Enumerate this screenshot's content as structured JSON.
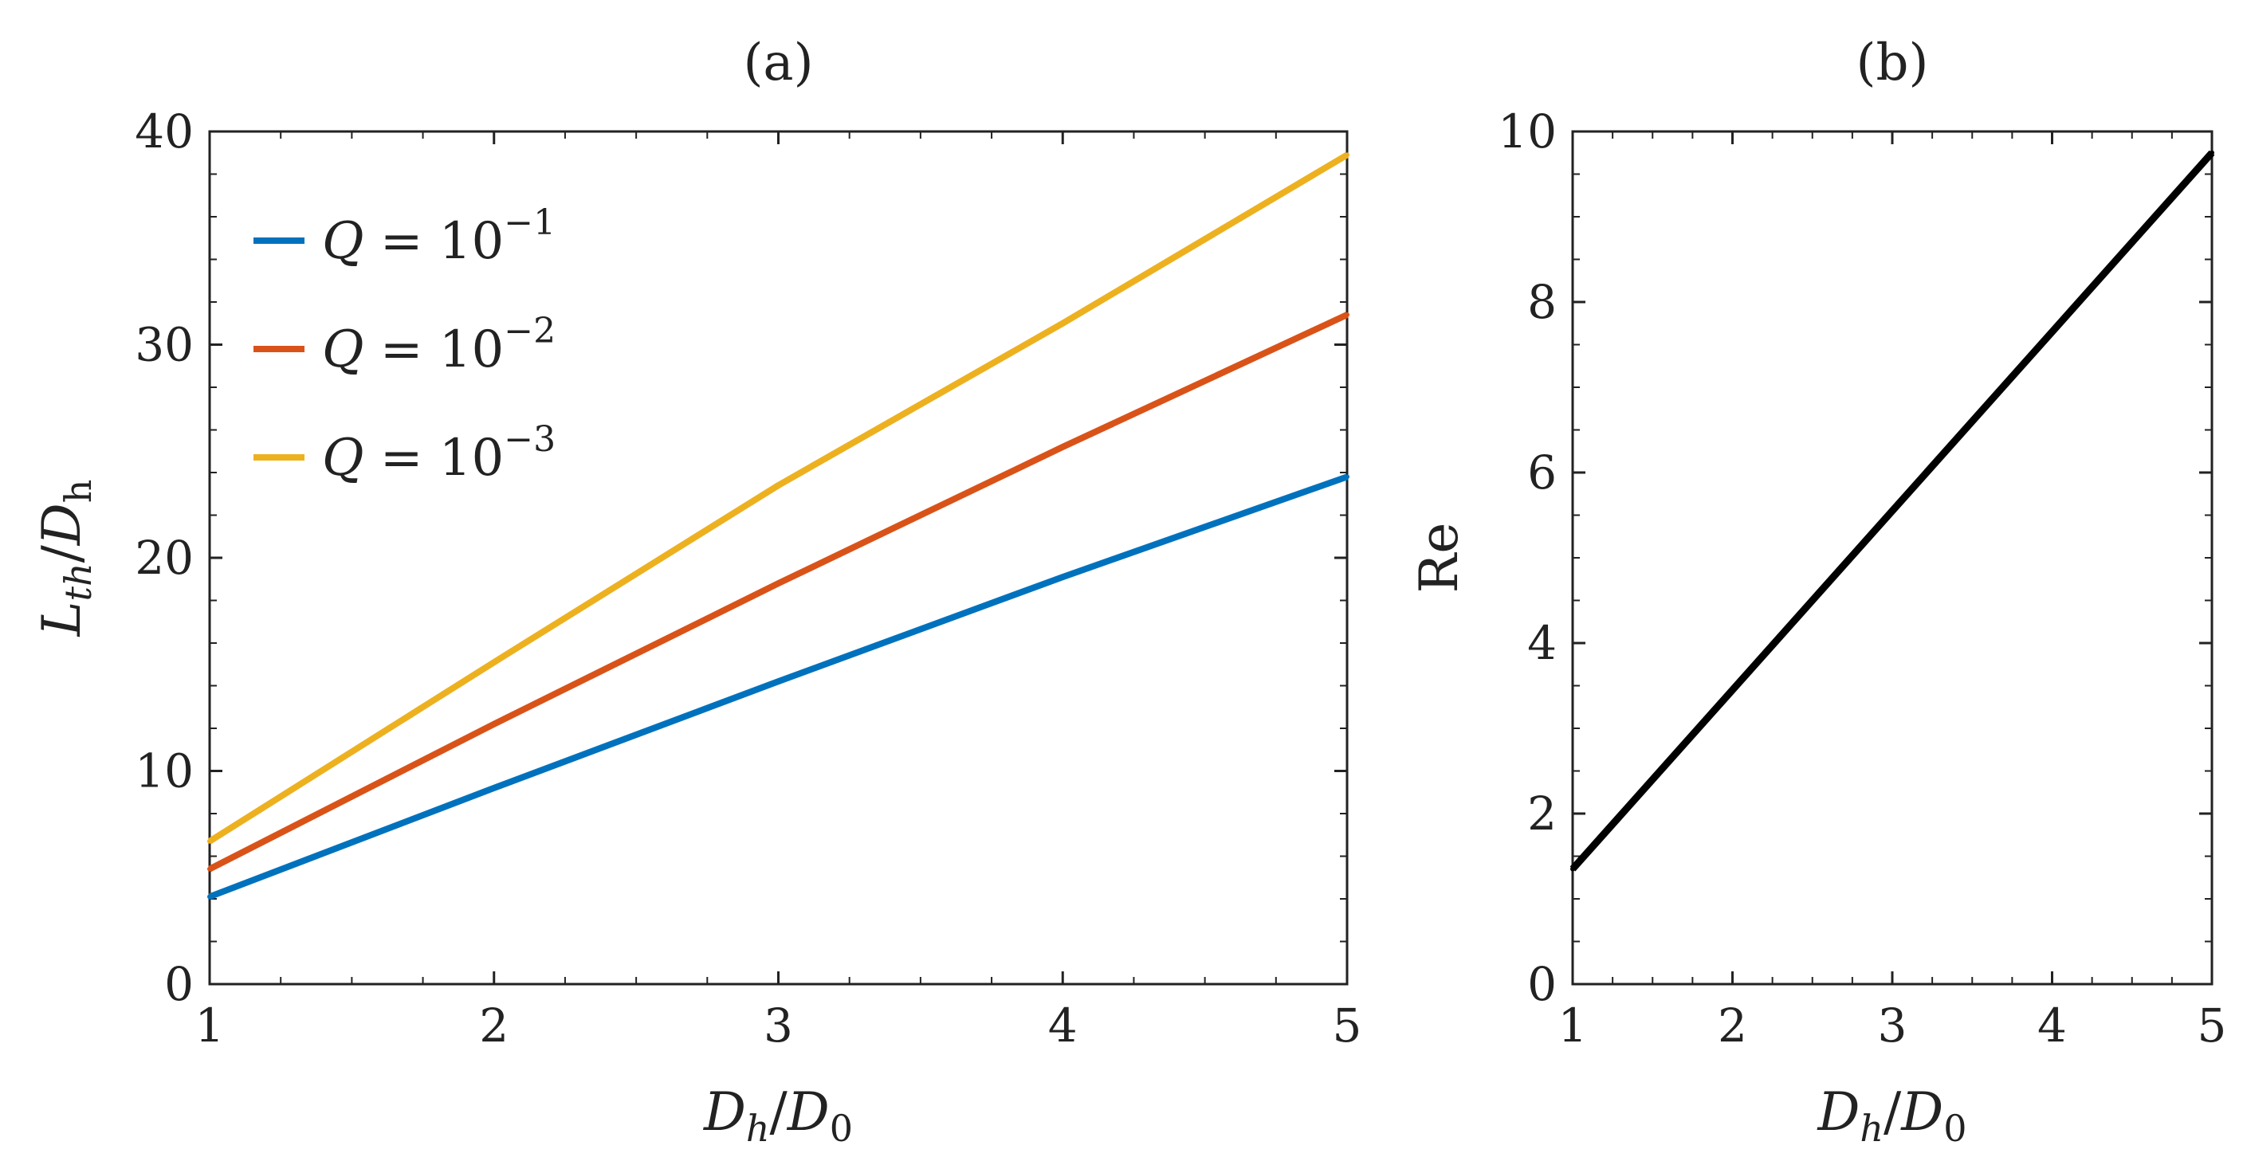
{
  "chart_data": [
    {
      "type": "line",
      "title": "(a)",
      "xlabel": {
        "main": "D",
        "sub1": "h",
        "slash": "/",
        "main2": "D",
        "sub2": "0"
      },
      "ylabel": {
        "main": "L",
        "sub1": "th",
        "slash": "/",
        "main2": "D",
        "sub2": "h"
      },
      "xlim": [
        1,
        5
      ],
      "ylim": [
        0,
        40
      ],
      "xticks": [
        1,
        2,
        3,
        4,
        5
      ],
      "yticks": [
        0,
        10,
        20,
        30,
        40
      ],
      "grid": false,
      "legend_position": "top-left",
      "series": [
        {
          "name": "Q = 10^-1",
          "legend_main": "Q = 10",
          "legend_exp": "−1",
          "color": "#0072BD",
          "x": [
            1,
            2,
            3,
            4,
            5
          ],
          "values": [
            4.1,
            9.2,
            14.2,
            19.1,
            23.8
          ]
        },
        {
          "name": "Q = 10^-2",
          "legend_main": "Q = 10",
          "legend_exp": "−2",
          "color": "#D95319",
          "x": [
            1,
            2,
            3,
            4,
            5
          ],
          "values": [
            5.4,
            12.2,
            18.8,
            25.2,
            31.4
          ]
        },
        {
          "name": "Q = 10^-3",
          "legend_main": "Q = 10",
          "legend_exp": "−3",
          "color": "#EDB120",
          "x": [
            1,
            2,
            3,
            4,
            5
          ],
          "values": [
            6.7,
            15.1,
            23.4,
            31.0,
            38.9
          ]
        }
      ]
    },
    {
      "type": "line",
      "title": "(b)",
      "xlabel": {
        "main": "D",
        "sub1": "h",
        "slash": "/",
        "main2": "D",
        "sub2": "0"
      },
      "ylabel": {
        "text": "Re"
      },
      "xlim": [
        1,
        5
      ],
      "ylim": [
        0,
        10
      ],
      "xticks": [
        1,
        2,
        3,
        4,
        5
      ],
      "yticks": [
        0,
        2,
        4,
        6,
        8,
        10
      ],
      "grid": false,
      "series": [
        {
          "name": "Re",
          "color": "#000000",
          "x": [
            1,
            2,
            3,
            4,
            5
          ],
          "values": [
            1.35,
            3.45,
            5.55,
            7.65,
            9.75
          ]
        }
      ]
    }
  ]
}
